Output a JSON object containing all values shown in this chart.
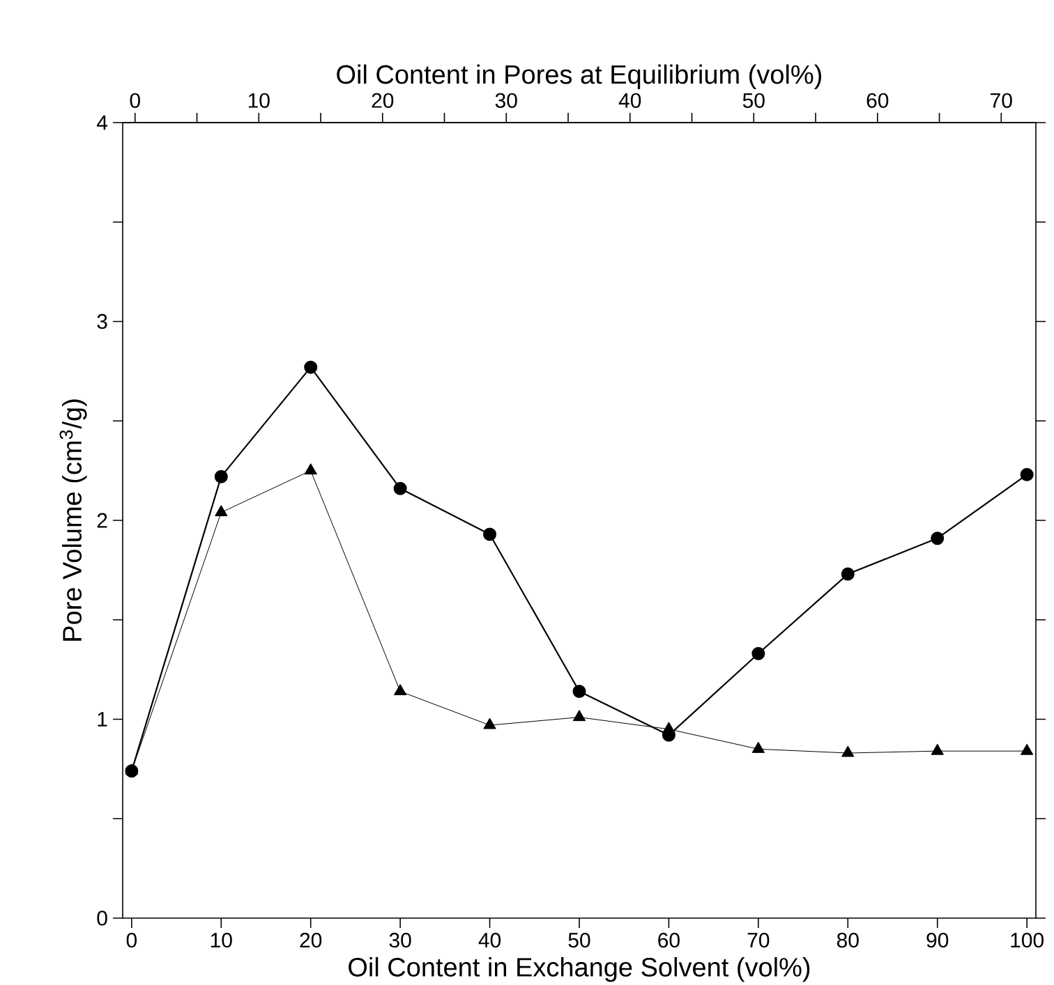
{
  "chart_data": {
    "type": "line",
    "xlabel": "Oil Content in Exchange Solvent (vol%)",
    "x2label": "Oil Content in Pores at Equilibrium (vol%)",
    "ylabel": "Pore Volume (cm$^{3}$/g)",
    "x": [
      0,
      10,
      20,
      30,
      40,
      50,
      60,
      70,
      80,
      90,
      100
    ],
    "series": [
      {
        "color": "#000000",
        "marker": "circle",
        "values": [
          0.74,
          2.22,
          2.77,
          2.16,
          1.93,
          1.14,
          0.92,
          1.33,
          1.73,
          1.91,
          2.23
        ]
      },
      {
        "color": "#000000",
        "marker": "triangle",
        "values": [
          0.74,
          2.04,
          2.25,
          1.14,
          0.97,
          1.01,
          0.95,
          0.85,
          0.83,
          0.84,
          0.84
        ]
      }
    ],
    "xlim": [
      -1,
      101
    ],
    "xticks": [
      0,
      10,
      20,
      30,
      40,
      50,
      60,
      70,
      80,
      90,
      100
    ],
    "x2lim": [
      -1,
      72.8
    ],
    "x2ticks": [
      0,
      {
        "value": 5,
        "label": null
      },
      10,
      {
        "value": 15,
        "label": null
      },
      20,
      {
        "value": 25,
        "label": null
      },
      30,
      {
        "value": 35,
        "label": null
      },
      40,
      {
        "value": 45,
        "label": null
      },
      50,
      {
        "value": 55,
        "label": null
      },
      60,
      {
        "value": 65,
        "label": null
      },
      70
    ],
    "ylim": [
      0,
      4
    ],
    "yticks": [
      0,
      {
        "value": 0.5,
        "label": null
      },
      1,
      {
        "value": 1.5,
        "label": null
      },
      2,
      {
        "value": 2.5,
        "label": null
      },
      3,
      {
        "value": 3.5,
        "label": null
      },
      4
    ],
    "grid": false,
    "line_style": "solid"
  }
}
